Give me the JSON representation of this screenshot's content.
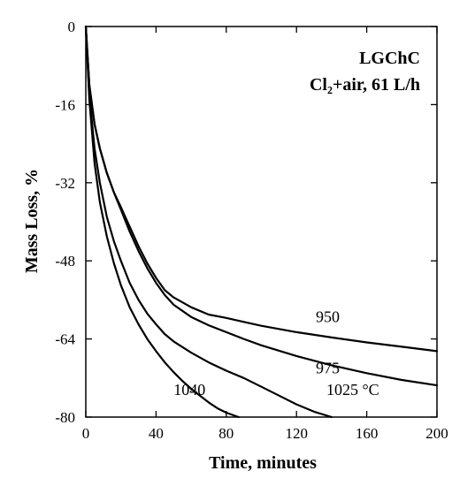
{
  "chart_data": {
    "type": "line",
    "title": "LGChC",
    "subtitle": "Cl₂+air, 61 L/h",
    "xlabel": "Time, minutes",
    "ylabel": "Mass Loss, %",
    "xlim": [
      0,
      200
    ],
    "ylim": [
      -80,
      0
    ],
    "xticks": [
      0,
      40,
      80,
      120,
      160,
      200
    ],
    "yticks": [
      0,
      -16,
      -32,
      -48,
      -64,
      -80
    ],
    "grid": false,
    "legend": "none",
    "series": [
      {
        "name": "950",
        "x": [
          0,
          2,
          5,
          8,
          12,
          16,
          20,
          25,
          30,
          35,
          40,
          45,
          50,
          60,
          70,
          80,
          90,
          100,
          120,
          140,
          160,
          180,
          200
        ],
        "y": [
          0,
          -12,
          -20,
          -25,
          -30,
          -34,
          -37,
          -41,
          -45,
          -48.5,
          -51.5,
          -54,
          -55.5,
          -57.5,
          -59,
          -59.7,
          -60.5,
          -61.3,
          -62.6,
          -63.7,
          -64.7,
          -65.6,
          -66.5
        ]
      },
      {
        "name": "975",
        "x": [
          0,
          2,
          5,
          8,
          12,
          16,
          20,
          25,
          30,
          35,
          40,
          45,
          50,
          60,
          70,
          80,
          90,
          100,
          120,
          140,
          160,
          180,
          200
        ],
        "y": [
          0,
          -12,
          -20,
          -25,
          -30,
          -34,
          -37.5,
          -42,
          -46,
          -49.5,
          -52.5,
          -55,
          -57,
          -59.5,
          -61.2,
          -62.6,
          -64,
          -65.3,
          -67.5,
          -69.4,
          -71,
          -72.4,
          -73.5
        ]
      },
      {
        "name": "1025 °C",
        "x": [
          0,
          2,
          5,
          8,
          12,
          16,
          20,
          25,
          30,
          35,
          40,
          45,
          50,
          60,
          70,
          80,
          90,
          100,
          110,
          120,
          130,
          140
        ],
        "y": [
          0,
          -14,
          -25,
          -32,
          -39,
          -44,
          -48,
          -52.5,
          -56,
          -58.8,
          -61,
          -63,
          -64.5,
          -66.8,
          -68.8,
          -70.5,
          -72,
          -73.8,
          -75.6,
          -77.4,
          -78.9,
          -80
        ]
      },
      {
        "name": "1040",
        "x": [
          0,
          2,
          5,
          8,
          12,
          16,
          20,
          25,
          30,
          35,
          40,
          45,
          50,
          55,
          60,
          65,
          70,
          75,
          80,
          87
        ],
        "y": [
          0,
          -15,
          -28,
          -36,
          -43,
          -48.5,
          -53,
          -57.5,
          -61,
          -64,
          -66.5,
          -68.8,
          -70.8,
          -72.6,
          -74.2,
          -75.6,
          -77,
          -78.2,
          -79.1,
          -80
        ]
      }
    ],
    "annotations": [
      {
        "text": "950",
        "x": 131,
        "y": -60.5
      },
      {
        "text": "975",
        "x": 131,
        "y": -71
      },
      {
        "text": "1025 °C",
        "x": 137,
        "y": -75.5
      },
      {
        "text": "1040",
        "x": 50,
        "y": -75.5
      }
    ]
  }
}
